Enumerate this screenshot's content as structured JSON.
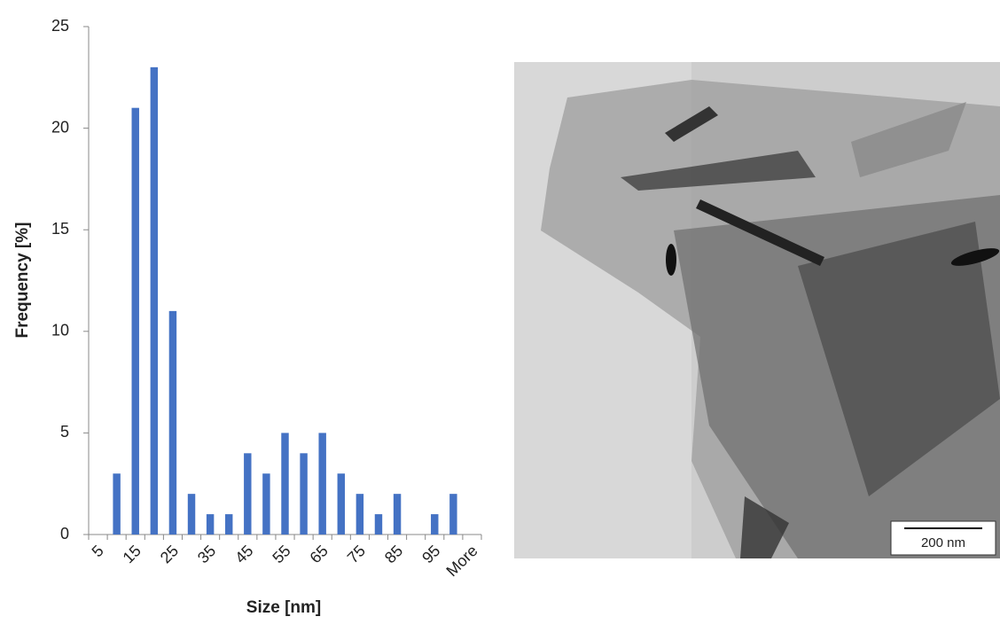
{
  "chart_data": {
    "type": "bar",
    "x_label": "Size [nm]",
    "y_label": "Frequency [%]",
    "categories": [
      "5",
      null,
      "15",
      null,
      "25",
      null,
      "35",
      null,
      "45",
      null,
      "55",
      null,
      "65",
      null,
      "75",
      null,
      "85",
      null,
      "95",
      null,
      "More"
    ],
    "values": [
      0,
      3,
      21,
      23,
      11,
      2,
      1,
      1,
      4,
      3,
      5,
      4,
      5,
      3,
      2,
      1,
      2,
      0,
      1,
      2,
      0
    ],
    "color": "#4472c4",
    "ylim": [
      0,
      25
    ],
    "yticks": [
      0,
      5,
      10,
      15,
      20,
      25
    ],
    "grid": false
  },
  "image": {
    "scale_bar": "200 nm"
  }
}
